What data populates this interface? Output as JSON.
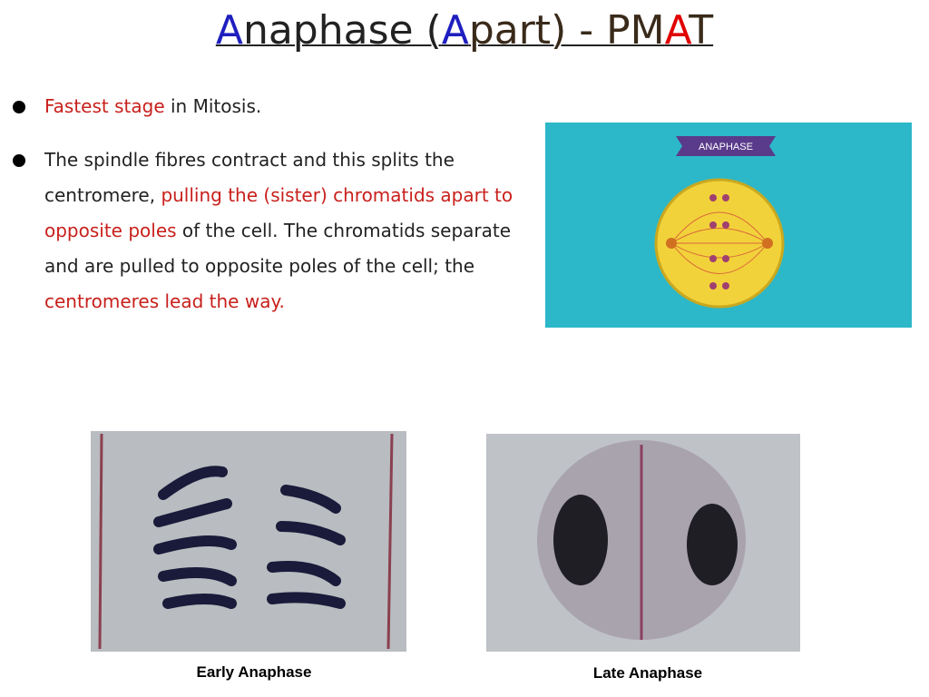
{
  "title": {
    "parts": [
      "A",
      "naphase (",
      "A",
      "part) - PM",
      "A",
      "T"
    ]
  },
  "bullets": [
    {
      "parts": [
        "Fastest stage",
        " in Mitosis."
      ]
    },
    {
      "parts": [
        "The spindle fibres contract and this splits the centromere, ",
        "pulling the (sister) chromatids apart to opposite poles",
        " of the cell. The chromatids separate and are pulled to opposite poles of the cell; the ",
        "centromeres lead the way."
      ]
    }
  ],
  "diagram_label": "ANAPHASE",
  "images": [
    {
      "caption": "Early Anaphase"
    },
    {
      "caption": "Late Anaphase"
    }
  ]
}
